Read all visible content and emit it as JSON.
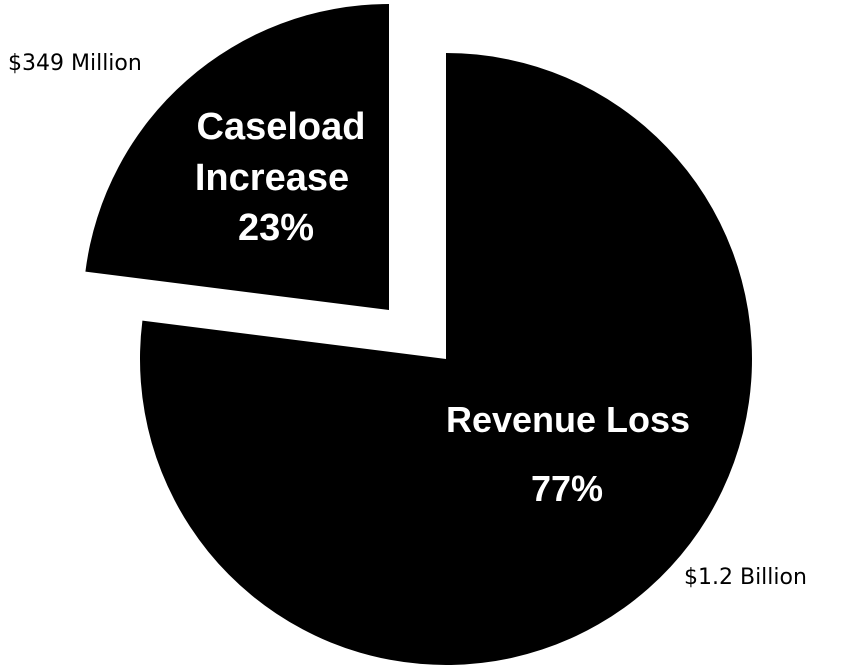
{
  "chart_data": {
    "type": "pie",
    "slices": [
      {
        "category_lines": [
          "Revenue Loss"
        ],
        "percent_label": "77%",
        "value_label": "$1.2 Billion",
        "percent": 77
      },
      {
        "category_lines": [
          "Caseload",
          "Increase"
        ],
        "percent_label": "23%",
        "value_label": "$349 Million",
        "percent": 23
      }
    ],
    "exploded": "Caseload Increase",
    "colors": {
      "slice": "#000000",
      "inner_text": "#ffffff",
      "outer_text": "#000000"
    }
  }
}
